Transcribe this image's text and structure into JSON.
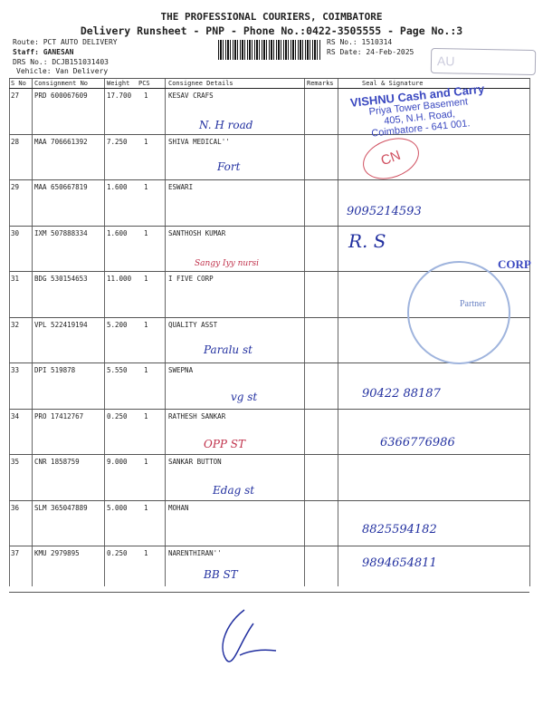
{
  "header": {
    "company": "THE PROFESSIONAL COURIERS, COIMBATORE",
    "subtitle": "Delivery Runsheet - PNP - Phone No.:0422-3505555 - Page No.:3",
    "route": "Route: PCT AUTO DELIVERY",
    "staff": "Staff: GANESAN",
    "drs_no": "DRS No.: DCJB151031403",
    "vehicle": "Vehicle: Van Delivery",
    "rs_no": "RS No.: 1510314",
    "rs_date": "RS Date: 24-Feb-2025"
  },
  "table": {
    "columns": [
      "S No",
      "Consignment No",
      "Weight",
      "PCS",
      "Consignee Details",
      "Remarks",
      "Seal & Signature"
    ],
    "rows": [
      {
        "sno": "27",
        "consignment": "PRD 600067609",
        "weight": "17.700",
        "pcs": "1",
        "consignee": "KESAV CRAFS",
        "note": "N. H road",
        "sign": ""
      },
      {
        "sno": "28",
        "consignment": "MAA 706661392",
        "weight": "7.250",
        "pcs": "1",
        "consignee": "SHIVA MEDICAL''",
        "note": "Fort",
        "sign": ""
      },
      {
        "sno": "29",
        "consignment": "MAA 650667819",
        "weight": "1.600",
        "pcs": "1",
        "consignee": "ESWARI",
        "note": "",
        "sign": "9095214593"
      },
      {
        "sno": "30",
        "consignment": "IXM 507888334",
        "weight": "1.600",
        "pcs": "1",
        "consignee": "SANTHOSH KUMAR",
        "note": "",
        "sign": "R. S"
      },
      {
        "sno": "31",
        "consignment": "BDG 530154653",
        "weight": "11.000",
        "pcs": "1",
        "consignee": "I FIVE CORP",
        "note": "Sangy Iyy nursi",
        "sign": ""
      },
      {
        "sno": "32",
        "consignment": "VPL 522419194",
        "weight": "5.200",
        "pcs": "1",
        "consignee": "QUALITY ASST",
        "note": "",
        "sign": ""
      },
      {
        "sno": "33",
        "consignment": "DPI 519878",
        "weight": "5.550",
        "pcs": "1",
        "consignee": "SWEPNA",
        "note": "Paralu st",
        "sign": "90422 88187"
      },
      {
        "sno": "34",
        "consignment": "PRO 17412767",
        "weight": "0.250",
        "pcs": "1",
        "consignee": "RATHESH SANKAR",
        "note": "vg st",
        "sign": "6366776986"
      },
      {
        "sno": "35",
        "consignment": "CNR 1858759",
        "weight": "9.000",
        "pcs": "1",
        "consignee": "SANKAR BUTTON",
        "note": "OPP ST",
        "sign": ""
      },
      {
        "sno": "36",
        "consignment": "SLM 365047889",
        "weight": "5.000",
        "pcs": "1",
        "consignee": "MOHAN",
        "note": "Edag st",
        "sign": "8825594182"
      },
      {
        "sno": "37",
        "consignment": "KMU 2979895",
        "weight": "0.250",
        "pcs": "1",
        "consignee": "NARENTHIRAN''",
        "note": "BB ST",
        "sign": "9894654811"
      }
    ]
  },
  "stamps": {
    "vishnu": [
      "VISHNU Cash and Carry",
      "Priya Tower Basement",
      "405, N.H. Road,",
      "Coimbatore - 641 001."
    ],
    "cn": "CN",
    "round_seal": "Partner",
    "corp": "CORP",
    "rect": "AU"
  },
  "colors": {
    "ink_blue": "#2230a0",
    "ink_red": "#c0304a",
    "stamp_blue": "#3a48c0"
  }
}
